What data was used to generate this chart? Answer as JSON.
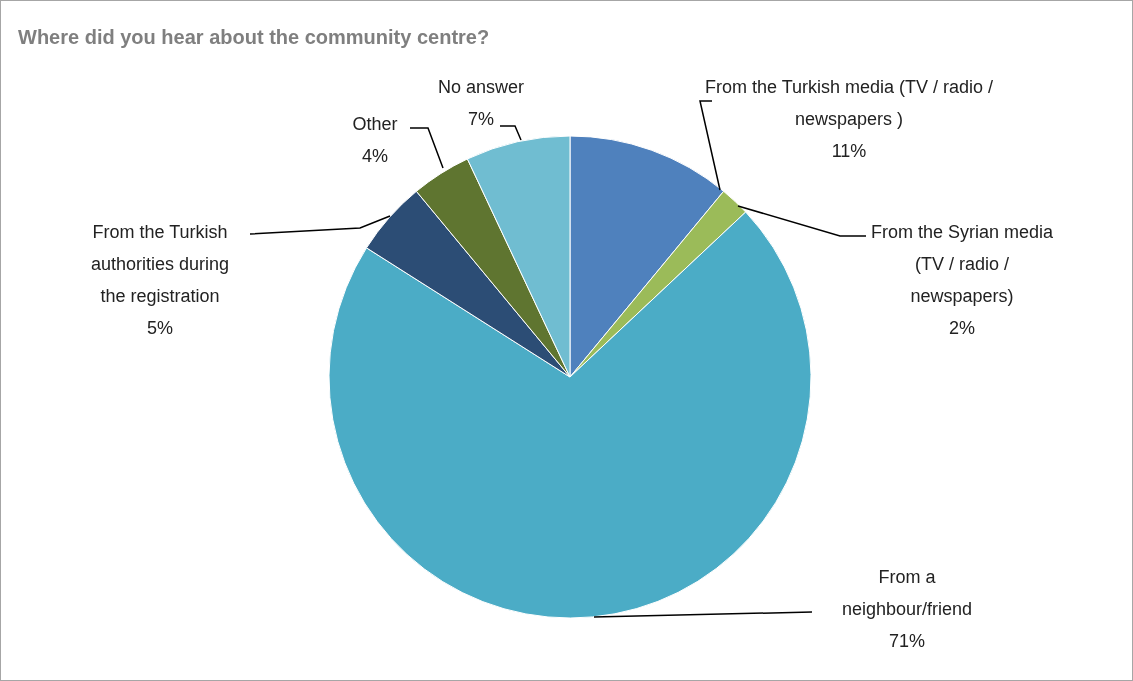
{
  "chart_data": {
    "type": "pie",
    "title": "Where did you hear about the community centre?",
    "categories": [
      "From the Turkish media (TV / radio / newspapers )",
      "From the Syrian media (TV / radio / newspapers)",
      "From a neighbour/friend",
      "From the Turkish authorities during the registration",
      "Other",
      "No answer"
    ],
    "values": [
      11,
      2,
      71,
      5,
      4,
      7
    ],
    "colors": [
      "#4f81bd",
      "#9bbb59",
      "#4bacc6",
      "#2c4d75",
      "#5f7530",
      "#70bdd1"
    ],
    "value_labels": [
      "11%",
      "2%",
      "71%",
      "5%",
      "4%",
      "7%"
    ]
  }
}
